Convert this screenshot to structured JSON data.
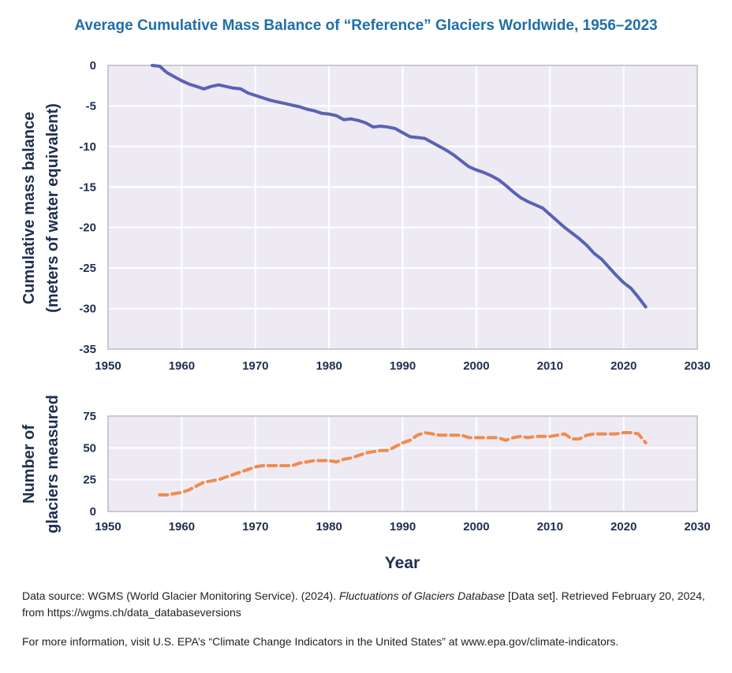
{
  "title": "Average Cumulative Mass Balance of “Reference” Glaciers Worldwide, 1956–2023",
  "colors": {
    "plot_bg": "#edeaf4",
    "grid": "#ffffff",
    "axis": "#b8b8c0",
    "mass_line": "#5b62b3",
    "count_line": "#f08b4c",
    "axis_text": "#1e2f4f",
    "title": "#1f6fa8"
  },
  "chart_data": [
    {
      "type": "line",
      "ylabel_line1": "Cumulative mass balance",
      "ylabel_line2": "(meters of water equivalent)",
      "xlim": [
        1950,
        2030
      ],
      "ylim": [
        -35,
        0
      ],
      "xticks": [
        "1950",
        "1960",
        "1970",
        "1980",
        "1990",
        "2000",
        "2010",
        "2020",
        "2030"
      ],
      "yticks": [
        "0",
        "-5",
        "-10",
        "-15",
        "-20",
        "-25",
        "-30",
        "-35"
      ],
      "grid": true,
      "style": "solid",
      "series": [
        {
          "x": [
            1956,
            1957,
            1958,
            1959,
            1960,
            1961,
            1962,
            1963,
            1964,
            1965,
            1966,
            1967,
            1968,
            1969,
            1970,
            1971,
            1972,
            1973,
            1974,
            1975,
            1976,
            1977,
            1978,
            1979,
            1980,
            1981,
            1982,
            1983,
            1984,
            1985,
            1986,
            1987,
            1988,
            1989,
            1990,
            1991,
            1992,
            1993,
            1994,
            1995,
            1996,
            1997,
            1998,
            1999,
            2000,
            2001,
            2002,
            2003,
            2004,
            2005,
            2006,
            2007,
            2008,
            2009,
            2010,
            2011,
            2012,
            2013,
            2014,
            2015,
            2016,
            2017,
            2018,
            2019,
            2020,
            2021,
            2022,
            2023
          ],
          "y": [
            0,
            -0.1,
            -0.9,
            -1.4,
            -1.9,
            -2.3,
            -2.6,
            -2.9,
            -2.6,
            -2.4,
            -2.6,
            -2.8,
            -2.9,
            -3.4,
            -3.7,
            -4.0,
            -4.3,
            -4.5,
            -4.7,
            -4.9,
            -5.1,
            -5.4,
            -5.6,
            -5.9,
            -6.0,
            -6.2,
            -6.7,
            -6.6,
            -6.8,
            -7.1,
            -7.6,
            -7.5,
            -7.6,
            -7.8,
            -8.3,
            -8.8,
            -8.9,
            -9.0,
            -9.5,
            -10.0,
            -10.5,
            -11.1,
            -11.8,
            -12.5,
            -12.9,
            -13.2,
            -13.6,
            -14.1,
            -14.8,
            -15.6,
            -16.3,
            -16.8,
            -17.2,
            -17.6,
            -18.4,
            -19.2,
            -20.0,
            -20.7,
            -21.4,
            -22.2,
            -23.2,
            -23.9,
            -24.9,
            -25.9,
            -26.8,
            -27.5,
            -28.6,
            -29.8
          ]
        }
      ]
    },
    {
      "type": "line",
      "ylabel_line1": "Number of",
      "ylabel_line2": "glaciers measured",
      "xlim": [
        1950,
        2030
      ],
      "ylim": [
        0,
        75
      ],
      "xticks": [
        "1950",
        "1960",
        "1970",
        "1980",
        "1990",
        "2000",
        "2010",
        "2020",
        "2030"
      ],
      "yticks": [
        "0",
        "25",
        "50",
        "75"
      ],
      "grid": true,
      "style": "dashed",
      "series": [
        {
          "x": [
            1957,
            1958,
            1959,
            1960,
            1961,
            1962,
            1963,
            1964,
            1965,
            1966,
            1967,
            1968,
            1969,
            1970,
            1971,
            1972,
            1973,
            1974,
            1975,
            1976,
            1977,
            1978,
            1979,
            1980,
            1981,
            1982,
            1983,
            1984,
            1985,
            1986,
            1987,
            1988,
            1989,
            1990,
            1991,
            1992,
            1993,
            1994,
            1995,
            1996,
            1997,
            1998,
            1999,
            2000,
            2001,
            2002,
            2003,
            2004,
            2005,
            2006,
            2007,
            2008,
            2009,
            2010,
            2011,
            2012,
            2013,
            2014,
            2015,
            2016,
            2017,
            2018,
            2019,
            2020,
            2021,
            2022,
            2023
          ],
          "y": [
            13,
            13,
            14,
            15,
            17,
            20,
            23,
            24,
            25,
            27,
            29,
            31,
            33,
            35,
            36,
            36,
            36,
            36,
            36,
            38,
            39,
            40,
            40,
            40,
            39,
            41,
            42,
            44,
            46,
            47,
            48,
            48,
            51,
            54,
            56,
            60,
            62,
            61,
            60,
            60,
            60,
            60,
            58,
            58,
            58,
            58,
            58,
            56,
            58,
            59,
            58,
            59,
            59,
            59,
            60,
            61,
            57,
            57,
            60,
            61,
            61,
            61,
            61,
            62,
            62,
            61,
            54
          ]
        }
      ]
    }
  ],
  "xlabel": "Year",
  "footnote": {
    "source_prefix": "Data source: WGMS (World Glacier Monitoring Service). (2024).",
    "source_italic": "Fluctuations of Glaciers Database",
    "source_suffix": "[Data set]. Retrieved February 20, 2024, from https://wgms.ch/data_databaseversions",
    "more_info": "For more information, visit U.S. EPA’s “Climate Change Indicators in the United States” at www.epa.gov/climate-indicators."
  }
}
